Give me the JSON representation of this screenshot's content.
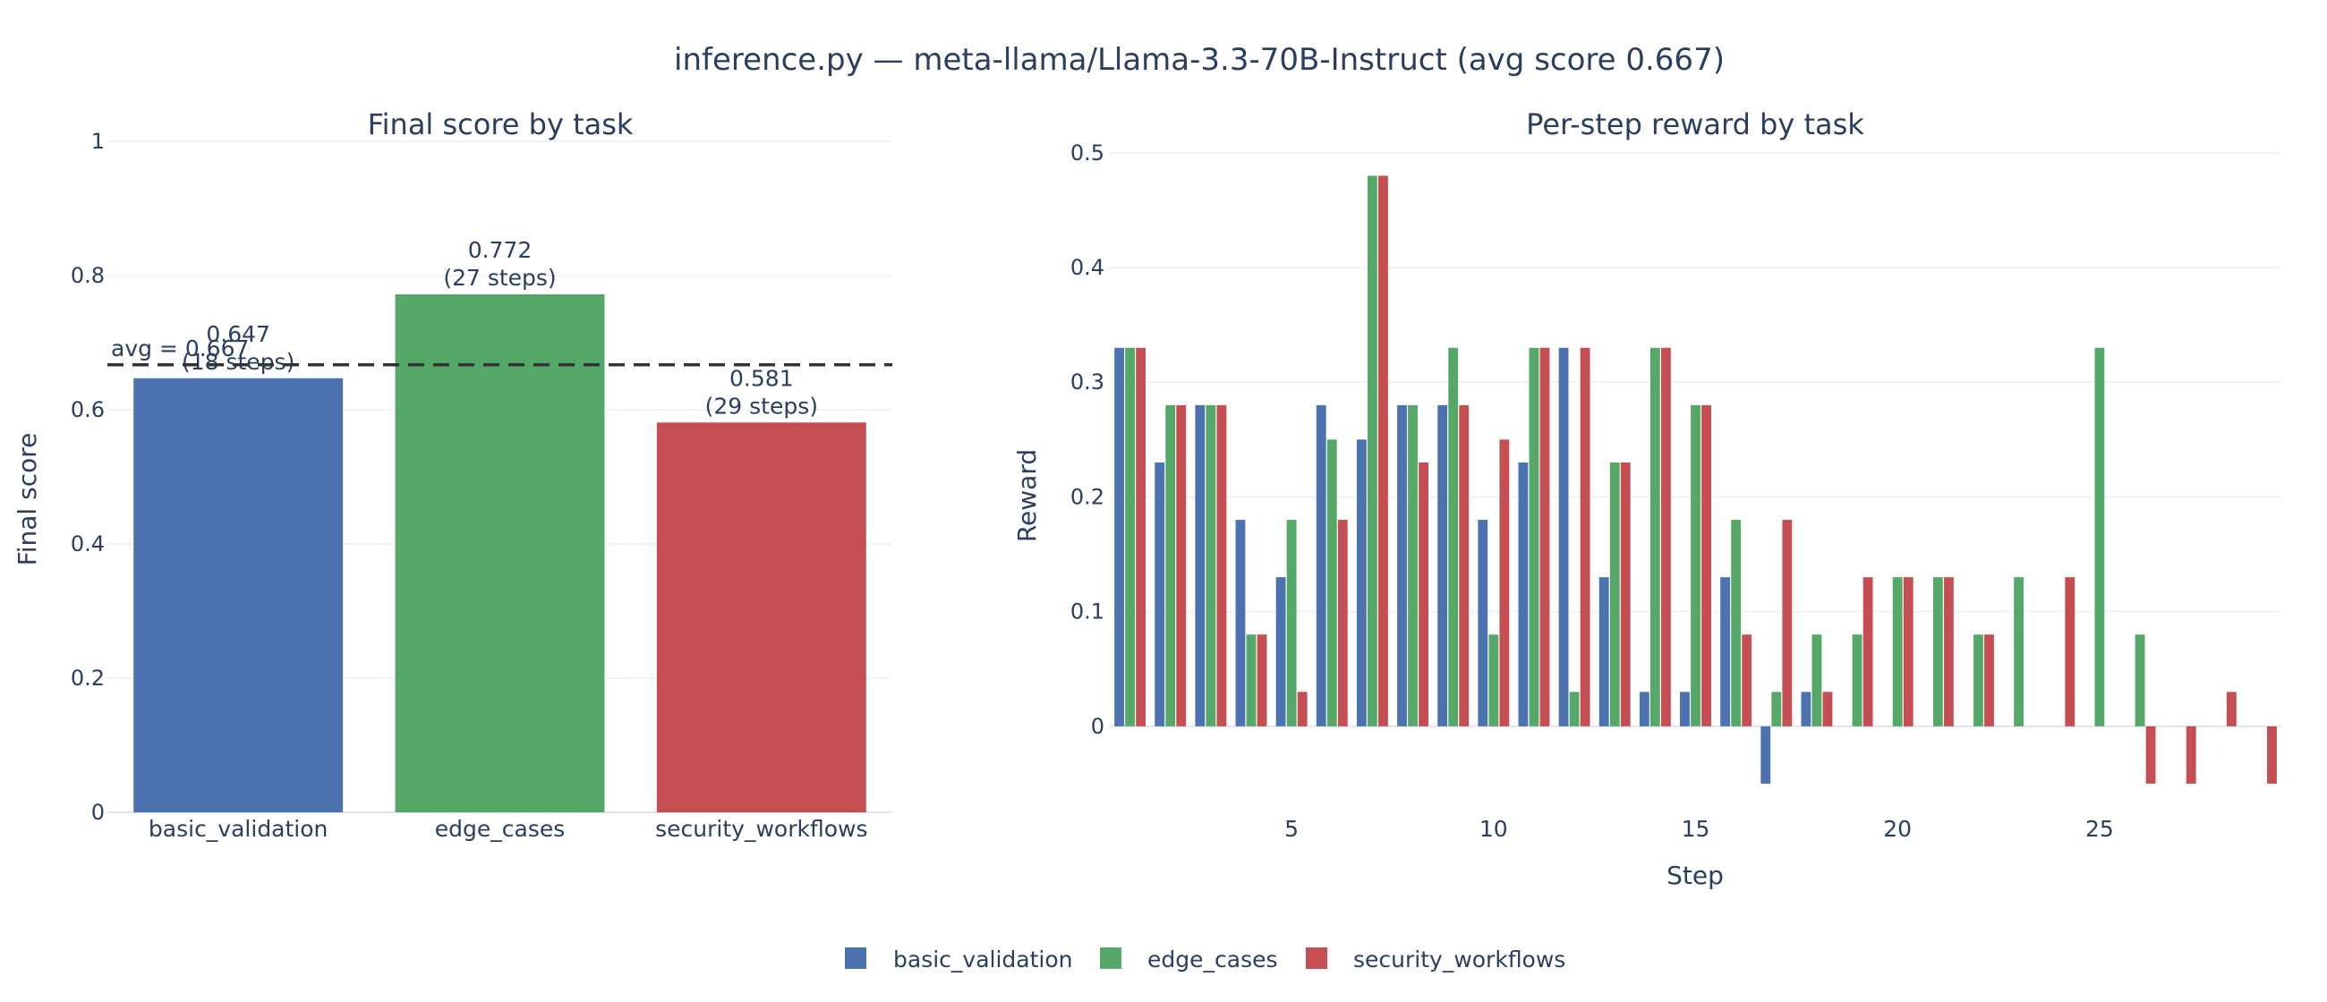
{
  "title": "inference.py — meta-llama/Llama-3.3-70B-Instruct (avg score 0.667)",
  "colors": {
    "basic_validation": "#4c72b0",
    "edge_cases": "#55a868",
    "security_workflows": "#c44e52",
    "avg_line": "#333333",
    "text": "#2a3f5f",
    "grid": "#ebf0f8"
  },
  "chart_data": [
    {
      "type": "bar",
      "title": "Final score by task",
      "xlabel": "",
      "ylabel": "Final score",
      "categories": [
        "basic_validation",
        "edge_cases",
        "security_workflows"
      ],
      "values": [
        0.647,
        0.772,
        0.581
      ],
      "data_labels": [
        [
          "0.647",
          "(18 steps)"
        ],
        [
          "0.772",
          "(27 steps)"
        ],
        [
          "0.581",
          "(29 steps)"
        ]
      ],
      "ylim": [
        0,
        1
      ],
      "yticks": [
        0,
        0.2,
        0.4,
        0.6,
        0.8,
        1
      ],
      "ytick_labels": [
        "0",
        "0.2",
        "0.4",
        "0.6",
        "0.8",
        "1"
      ],
      "reference_line": {
        "value": 0.667,
        "label": "avg = 0.667",
        "style": "dashed"
      },
      "grid": true
    },
    {
      "type": "bar",
      "title": "Per-step reward by task",
      "xlabel": "Step",
      "ylabel": "Reward",
      "xlim": [
        0.5,
        29.5
      ],
      "ylim": [
        -0.075,
        0.51
      ],
      "xticks": [
        5,
        10,
        15,
        20,
        25
      ],
      "xtick_labels": [
        "5",
        "10",
        "15",
        "20",
        "25"
      ],
      "yticks": [
        0,
        0.1,
        0.2,
        0.3,
        0.4,
        0.5
      ],
      "ytick_labels": [
        "0",
        "0.1",
        "0.2",
        "0.3",
        "0.4",
        "0.5"
      ],
      "grid": true,
      "series": [
        {
          "name": "basic_validation",
          "x": [
            1,
            2,
            3,
            4,
            5,
            6,
            7,
            8,
            9,
            10,
            11,
            12,
            13,
            14,
            15,
            16,
            17,
            18
          ],
          "values": [
            0.33,
            0.23,
            0.28,
            0.18,
            0.13,
            0.28,
            0.25,
            0.28,
            0.28,
            0.18,
            0.23,
            0.33,
            0.13,
            0.03,
            0.03,
            0.13,
            -0.05,
            0.03
          ]
        },
        {
          "name": "edge_cases",
          "x": [
            1,
            2,
            3,
            4,
            5,
            6,
            7,
            8,
            9,
            10,
            11,
            12,
            13,
            14,
            15,
            16,
            17,
            18,
            19,
            20,
            21,
            22,
            23,
            24,
            25,
            26,
            27
          ],
          "values": [
            0.33,
            0.28,
            0.28,
            0.08,
            0.18,
            0.25,
            0.48,
            0.28,
            0.33,
            0.08,
            0.33,
            0.03,
            0.23,
            0.33,
            0.28,
            0.18,
            0.03,
            0.08,
            0.08,
            0.13,
            0.13,
            0.08,
            0.13,
            0,
            0.33,
            0.08,
            0
          ]
        },
        {
          "name": "security_workflows",
          "x": [
            1,
            2,
            3,
            4,
            5,
            6,
            7,
            8,
            9,
            10,
            11,
            12,
            13,
            14,
            15,
            16,
            17,
            18,
            19,
            20,
            21,
            22,
            23,
            24,
            25,
            26,
            27,
            28,
            29
          ],
          "values": [
            0.33,
            0.28,
            0.28,
            0.08,
            0.03,
            0.18,
            0.48,
            0.23,
            0.28,
            0.25,
            0.33,
            0.33,
            0.23,
            0.33,
            0.28,
            0.08,
            0.18,
            0.03,
            0.13,
            0.13,
            0.13,
            0.08,
            0,
            0.13,
            0,
            -0.05,
            -0.05,
            0.03,
            -0.05
          ]
        }
      ]
    }
  ],
  "legend": {
    "placement": "bottom-center",
    "items": [
      "basic_validation",
      "edge_cases",
      "security_workflows"
    ]
  }
}
